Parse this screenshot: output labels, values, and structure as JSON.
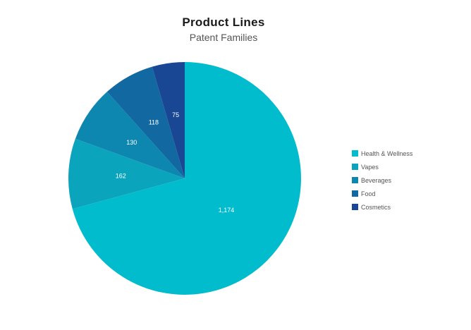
{
  "chart_data": {
    "type": "pie",
    "title": "Product Lines",
    "subtitle": "Patent Families",
    "slices": [
      {
        "label": "Health & Wellness",
        "value": 1174,
        "display": "1,174",
        "color": "#00bccc"
      },
      {
        "label": "Vapes",
        "value": 162,
        "display": "162",
        "color": "#0aa5bd"
      },
      {
        "label": "Beverages",
        "value": 130,
        "display": "130",
        "color": "#0e87b0"
      },
      {
        "label": "Food",
        "value": 118,
        "display": "118",
        "color": "#1268a0"
      },
      {
        "label": "Cosmetics",
        "value": 75,
        "display": "75",
        "color": "#1a4793"
      }
    ],
    "legend_position": "right"
  }
}
